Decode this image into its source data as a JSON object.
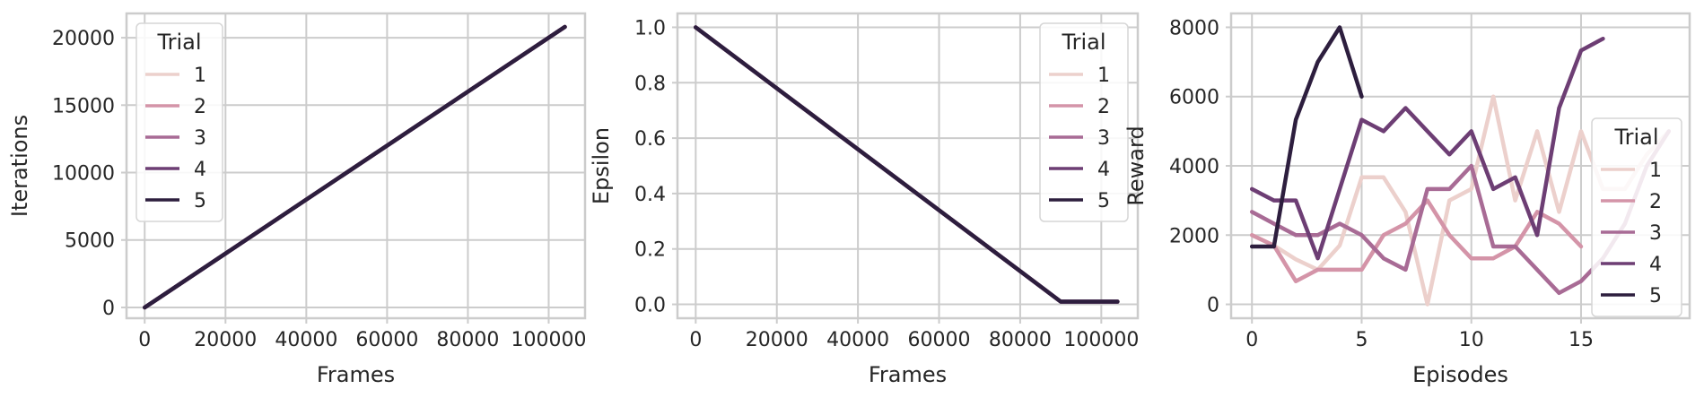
{
  "chart_data": [
    {
      "type": "line",
      "xlabel": "Frames",
      "ylabel": "Iterations",
      "xlim": [
        -4500,
        109000
      ],
      "ylim": [
        -800,
        21800
      ],
      "xticks": [
        0,
        20000,
        40000,
        60000,
        80000,
        100000
      ],
      "yticks": [
        0,
        5000,
        10000,
        15000,
        20000
      ],
      "grid": true,
      "legend": {
        "title": "Trial",
        "placement": "upper-left"
      },
      "series": [
        {
          "name": "1",
          "color": "#ecd0cc",
          "x": [
            0,
            104000
          ],
          "y": [
            0,
            20800
          ]
        },
        {
          "name": "2",
          "color": "#d494a8",
          "x": [
            0,
            104000
          ],
          "y": [
            0,
            20800
          ]
        },
        {
          "name": "3",
          "color": "#a86b95",
          "x": [
            0,
            104000
          ],
          "y": [
            0,
            20800
          ]
        },
        {
          "name": "4",
          "color": "#6d3e74",
          "x": [
            0,
            104000
          ],
          "y": [
            0,
            20800
          ]
        },
        {
          "name": "5",
          "color": "#2d1e3e",
          "x": [
            0,
            104000
          ],
          "y": [
            0,
            20800
          ]
        }
      ]
    },
    {
      "type": "line",
      "xlabel": "Frames",
      "ylabel": "Epsilon",
      "xlim": [
        -4500,
        109000
      ],
      "ylim": [
        -0.05,
        1.05
      ],
      "xticks": [
        0,
        20000,
        40000,
        60000,
        80000,
        100000
      ],
      "yticks": [
        0.0,
        0.2,
        0.4,
        0.6,
        0.8,
        1.0
      ],
      "ytick_labels": [
        "0.0",
        "0.2",
        "0.4",
        "0.6",
        "0.8",
        "1.0"
      ],
      "grid": true,
      "legend": {
        "title": "Trial",
        "placement": "upper-right"
      },
      "series": [
        {
          "name": "1",
          "color": "#ecd0cc",
          "x": [
            0,
            90000,
            104000
          ],
          "y": [
            1.0,
            0.01,
            0.01
          ]
        },
        {
          "name": "2",
          "color": "#d494a8",
          "x": [
            0,
            90000,
            104000
          ],
          "y": [
            1.0,
            0.01,
            0.01
          ]
        },
        {
          "name": "3",
          "color": "#a86b95",
          "x": [
            0,
            90000,
            104000
          ],
          "y": [
            1.0,
            0.01,
            0.01
          ]
        },
        {
          "name": "4",
          "color": "#6d3e74",
          "x": [
            0,
            90000,
            104000
          ],
          "y": [
            1.0,
            0.01,
            0.01
          ]
        },
        {
          "name": "5",
          "color": "#2d1e3e",
          "x": [
            0,
            90000,
            104000
          ],
          "y": [
            1.0,
            0.01,
            0.01
          ]
        }
      ]
    },
    {
      "type": "line",
      "xlabel": "Episodes",
      "ylabel": "Reward",
      "xlim": [
        -0.95,
        19.95
      ],
      "ylim": [
        -400,
        8400
      ],
      "xticks": [
        0,
        5,
        10,
        15
      ],
      "yticks": [
        0,
        2000,
        4000,
        6000,
        8000
      ],
      "grid": true,
      "legend": {
        "title": "Trial",
        "placement": "lower-right"
      },
      "series": [
        {
          "name": "1",
          "color": "#ecd0cc",
          "x": [
            0,
            1,
            2,
            3,
            4,
            5,
            6,
            7,
            8,
            9,
            10,
            11,
            12,
            13,
            14,
            15,
            16,
            17,
            18,
            19
          ],
          "y": [
            2000,
            1700,
            1300,
            1000,
            1700,
            3670,
            3670,
            2670,
            0,
            3000,
            3330,
            6000,
            3000,
            5000,
            2670,
            5000,
            3330,
            3330,
            4330,
            5000
          ]
        },
        {
          "name": "2",
          "color": "#d494a8",
          "x": [
            0,
            1,
            2,
            3,
            4,
            5,
            6,
            7,
            8,
            9,
            10,
            11,
            12,
            13,
            14,
            15
          ],
          "y": [
            2000,
            1700,
            670,
            1000,
            1000,
            1000,
            2000,
            2330,
            3000,
            2000,
            1330,
            1330,
            1670,
            2670,
            2330,
            1670
          ]
        },
        {
          "name": "3",
          "color": "#a86b95",
          "x": [
            0,
            1,
            2,
            3,
            4,
            5,
            6,
            7,
            8,
            9,
            10,
            11,
            12,
            13,
            14,
            15,
            16,
            17,
            18,
            19
          ],
          "y": [
            2670,
            2330,
            2000,
            2000,
            2330,
            2000,
            1330,
            1000,
            3330,
            3330,
            4000,
            1670,
            1670,
            1000,
            330,
            670,
            1330,
            2330,
            4000,
            5000
          ]
        },
        {
          "name": "4",
          "color": "#6d3e74",
          "x": [
            0,
            1,
            2,
            3,
            4,
            5,
            6,
            7,
            8,
            9,
            10,
            11,
            12,
            13,
            14,
            15,
            16
          ],
          "y": [
            3330,
            3000,
            3000,
            1330,
            3330,
            5330,
            5000,
            5670,
            5000,
            4330,
            5000,
            3330,
            3670,
            2000,
            5670,
            7330,
            7670
          ]
        },
        {
          "name": "5",
          "color": "#2d1e3e",
          "x": [
            0,
            1,
            2,
            3,
            4,
            5
          ],
          "y": [
            1670,
            1670,
            5330,
            7000,
            8000,
            6000
          ]
        }
      ]
    }
  ]
}
